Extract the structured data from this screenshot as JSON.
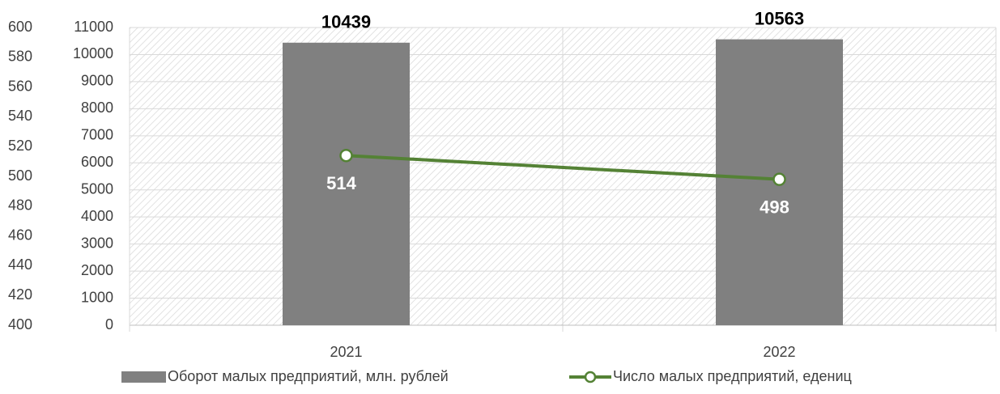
{
  "chart_data": {
    "type": "bar-line",
    "categories": [
      "2021",
      "2022"
    ],
    "series": [
      {
        "name": "Оборот малых предприятий, млн. рублей",
        "type": "bar",
        "color": "#808080",
        "values": [
          10439,
          10563
        ]
      },
      {
        "name": "Число малых предприятий, едениц",
        "type": "line",
        "axis": "y2",
        "color": "#548235",
        "values": [
          514,
          498
        ]
      }
    ],
    "ylim": [
      0,
      11000
    ],
    "yticks": [
      0,
      1000,
      2000,
      3000,
      4000,
      5000,
      6000,
      7000,
      8000,
      9000,
      10000,
      11000
    ],
    "y2lim": [
      400,
      600
    ],
    "y2ticks": [
      400,
      420,
      440,
      460,
      480,
      500,
      520,
      540,
      560,
      580,
      600
    ],
    "grid": true,
    "legend": "bottom"
  }
}
